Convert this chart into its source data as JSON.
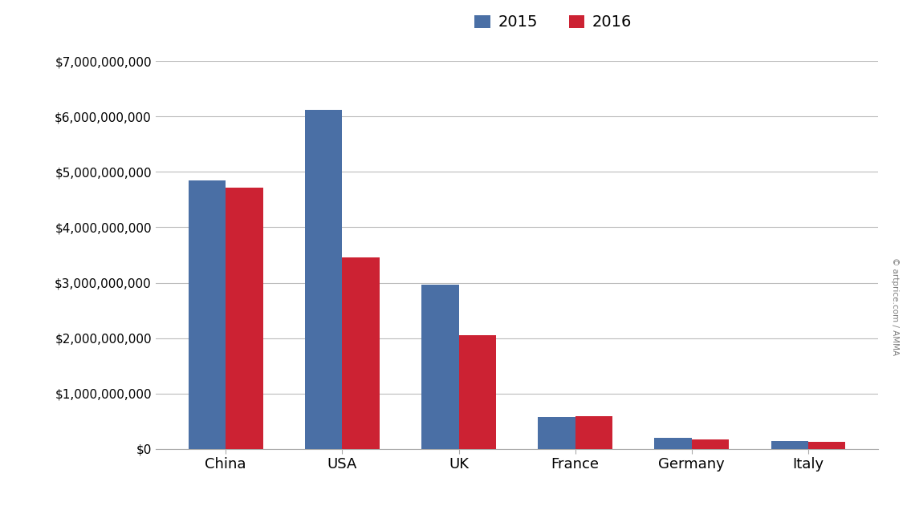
{
  "categories": [
    "China",
    "USA",
    "UK",
    "France",
    "Germany",
    "Italy"
  ],
  "values_2015": [
    4850000000,
    6120000000,
    2970000000,
    570000000,
    200000000,
    145000000
  ],
  "values_2016": [
    4720000000,
    3450000000,
    2050000000,
    590000000,
    175000000,
    130000000
  ],
  "color_2015": "#4a6fa5",
  "color_2016": "#cc2233",
  "legend_2015": "2015",
  "legend_2016": "2016",
  "ylim": [
    0,
    7000000000
  ],
  "yticks": [
    0,
    1000000000,
    2000000000,
    3000000000,
    4000000000,
    5000000000,
    6000000000,
    7000000000
  ],
  "background_color": "#ffffff",
  "grid_color": "#bbbbbb",
  "watermark": "© artprice.com / AMMA",
  "bar_width": 0.32
}
